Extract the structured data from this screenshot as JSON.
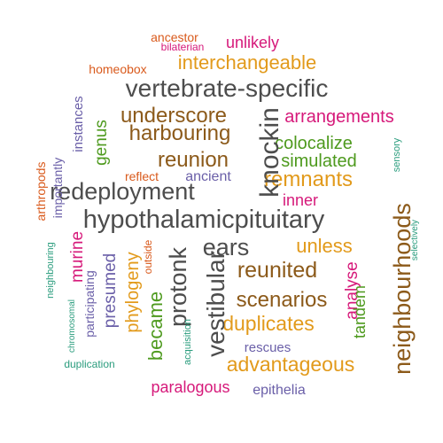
{
  "palette": {
    "gray": "#4d4d4d",
    "brown": "#8c5a1a",
    "orange": "#e29a1b",
    "green": "#4e9a1e",
    "magenta": "#d6197a",
    "purple": "#6a5fa8",
    "red": "#d95a1c",
    "teal": "#2a9c7d"
  },
  "words": [
    {
      "text": "ancestor",
      "color": "red",
      "rotated": false
    },
    {
      "text": "bilaterian",
      "color": "magenta",
      "rotated": false
    },
    {
      "text": "unlikely",
      "color": "magenta",
      "rotated": false
    },
    {
      "text": "homeobox",
      "color": "red",
      "rotated": false
    },
    {
      "text": "interchangeable",
      "color": "orange",
      "rotated": false
    },
    {
      "text": "vertebrate-specific",
      "color": "gray",
      "rotated": false
    },
    {
      "text": "underscore",
      "color": "brown",
      "rotated": false
    },
    {
      "text": "arrangements",
      "color": "magenta",
      "rotated": false
    },
    {
      "text": "harbouring",
      "color": "brown",
      "rotated": false
    },
    {
      "text": "colocalize",
      "color": "green",
      "rotated": false
    },
    {
      "text": "reunion",
      "color": "brown",
      "rotated": false
    },
    {
      "text": "simulated",
      "color": "green",
      "rotated": false
    },
    {
      "text": "reflect",
      "color": "red",
      "rotated": false
    },
    {
      "text": "ancient",
      "color": "purple",
      "rotated": false
    },
    {
      "text": "remnants",
      "color": "orange",
      "rotated": false
    },
    {
      "text": "redeployment",
      "color": "gray",
      "rotated": false
    },
    {
      "text": "inner",
      "color": "magenta",
      "rotated": false
    },
    {
      "text": "hypothalamicpituitary",
      "color": "gray",
      "rotated": false
    },
    {
      "text": "ears",
      "color": "gray",
      "rotated": false
    },
    {
      "text": "unless",
      "color": "orange",
      "rotated": false
    },
    {
      "text": "reunited",
      "color": "brown",
      "rotated": false
    },
    {
      "text": "scenarios",
      "color": "brown",
      "rotated": false
    },
    {
      "text": "duplicates",
      "color": "orange",
      "rotated": false
    },
    {
      "text": "rescues",
      "color": "purple",
      "rotated": false
    },
    {
      "text": "advantageous",
      "color": "orange",
      "rotated": false
    },
    {
      "text": "duplication",
      "color": "teal",
      "rotated": false
    },
    {
      "text": "paralogous",
      "color": "magenta",
      "rotated": false
    },
    {
      "text": "epithelia",
      "color": "purple",
      "rotated": false
    },
    {
      "text": "knockin",
      "color": "gray",
      "rotated": true
    },
    {
      "text": "instances",
      "color": "purple",
      "rotated": true
    },
    {
      "text": "genus",
      "color": "green",
      "rotated": true
    },
    {
      "text": "importantly",
      "color": "purple",
      "rotated": true
    },
    {
      "text": "arthropods",
      "color": "red",
      "rotated": true
    },
    {
      "text": "sensory",
      "color": "teal",
      "rotated": true
    },
    {
      "text": "neighbourhoods",
      "color": "brown",
      "rotated": true
    },
    {
      "text": "selectively",
      "color": "teal",
      "rotated": true
    },
    {
      "text": "neighbouring",
      "color": "teal",
      "rotated": true
    },
    {
      "text": "murine",
      "color": "magenta",
      "rotated": true
    },
    {
      "text": "chromosomal",
      "color": "teal",
      "rotated": true
    },
    {
      "text": "participating",
      "color": "purple",
      "rotated": true
    },
    {
      "text": "presumed",
      "color": "purple",
      "rotated": true
    },
    {
      "text": "phylogeny",
      "color": "orange",
      "rotated": true
    },
    {
      "text": "outside",
      "color": "red",
      "rotated": true
    },
    {
      "text": "became",
      "color": "green",
      "rotated": true
    },
    {
      "text": "protonk",
      "color": "gray",
      "rotated": true
    },
    {
      "text": "acquisition",
      "color": "teal",
      "rotated": true
    },
    {
      "text": "vestibular",
      "color": "gray",
      "rotated": true
    },
    {
      "text": "analyse",
      "color": "magenta",
      "rotated": true
    },
    {
      "text": "tandem",
      "color": "green",
      "rotated": true
    }
  ]
}
